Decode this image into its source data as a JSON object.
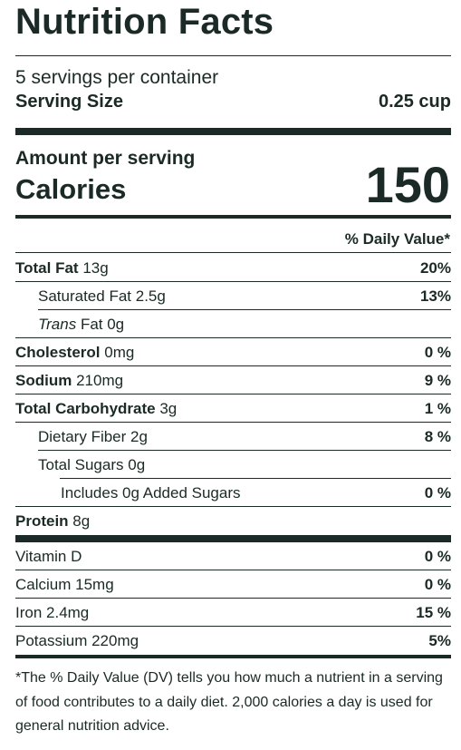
{
  "title": "Nutrition Facts",
  "servings_per_container": "5 servings per container",
  "serving_size": {
    "label": "Serving Size",
    "value": "0.25 cup"
  },
  "amount_per_serving": "Amount per serving",
  "calories": {
    "label": "Calories",
    "value": "150"
  },
  "daily_value_header": "% Daily Value*",
  "nutrients": [
    {
      "name": "Total Fat",
      "amount": "13g",
      "dv": "20%"
    },
    {
      "name": "Saturated Fat",
      "amount": "2.5g",
      "dv": "13%"
    },
    {
      "name": "Trans",
      "amount": "Fat 0g",
      "dv": ""
    },
    {
      "name": "Cholesterol",
      "amount": "0mg",
      "dv": "0 %"
    },
    {
      "name": "Sodium",
      "amount": "210mg",
      "dv": "9 %"
    },
    {
      "name": "Total Carbohydrate",
      "amount": "3g",
      "dv": "1 %"
    },
    {
      "name": "Dietary Fiber",
      "amount": "2g",
      "dv": "8 %"
    },
    {
      "name": "Total Sugars",
      "amount": "0g",
      "dv": ""
    },
    {
      "name": "Includes 0g Added Sugars",
      "amount": "",
      "dv": "0 %"
    },
    {
      "name": "Protein",
      "amount": "8g",
      "dv": ""
    }
  ],
  "vitamins": [
    {
      "name": "Vitamin D",
      "dv": "0 %"
    },
    {
      "name": "Calcium 15mg",
      "dv": "0 %"
    },
    {
      "name": "Iron 2.4mg",
      "dv": "15 %"
    },
    {
      "name": "Potassium 220mg",
      "dv": "5%"
    }
  ],
  "footnote": "*The % Daily Value (DV) tells you how much a nutrient in a serving of food contributes to a daily diet. 2,000 calories a day is used for general nutrition advice."
}
